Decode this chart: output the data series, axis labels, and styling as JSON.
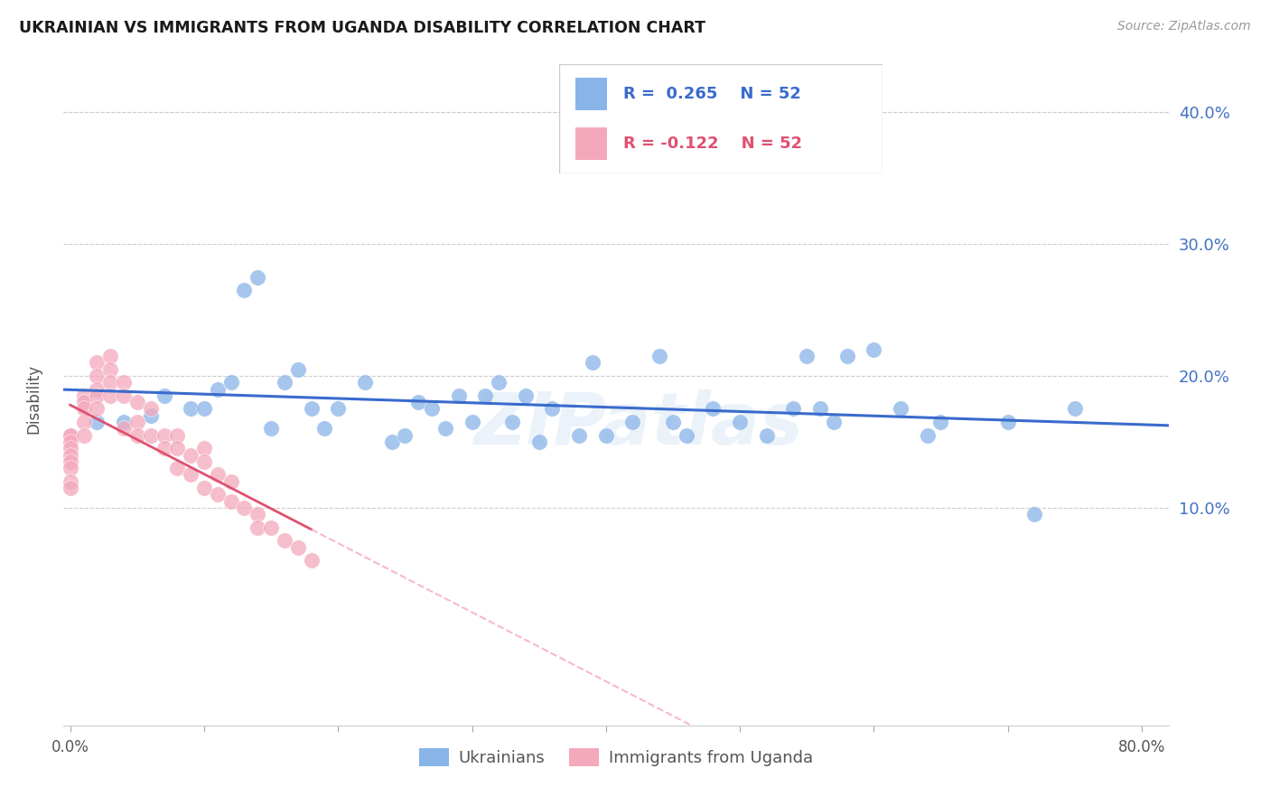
{
  "title": "UKRAINIAN VS IMMIGRANTS FROM UGANDA DISABILITY CORRELATION CHART",
  "source": "Source: ZipAtlas.com",
  "ylabel": "Disability",
  "watermark": "ZIPatlas",
  "legend_blue_r": "R =  0.265",
  "legend_blue_n": "N = 52",
  "legend_pink_r": "R = -0.122",
  "legend_pink_n": "N = 52",
  "legend_label_blue": "Ukrainians",
  "legend_label_pink": "Immigrants from Uganda",
  "blue_scatter_color": "#89b4e8",
  "pink_scatter_color": "#f4a8bc",
  "trendline_blue_color": "#3a6bcc",
  "trendline_pink_solid_color": "#e05070",
  "trendline_pink_dash_color": "#f4a8bc",
  "ytick_color": "#4472c4",
  "ytick_labels": [
    "10.0%",
    "20.0%",
    "30.0%",
    "40.0%"
  ],
  "ytick_values": [
    0.1,
    0.2,
    0.3,
    0.4
  ],
  "xlim": [
    -0.005,
    0.82
  ],
  "ylim": [
    -0.065,
    0.43
  ],
  "xtick_positions": [
    0.0,
    0.1,
    0.2,
    0.3,
    0.4,
    0.5,
    0.6,
    0.7,
    0.8
  ],
  "blue_x": [
    0.02,
    0.04,
    0.06,
    0.07,
    0.09,
    0.1,
    0.11,
    0.12,
    0.13,
    0.14,
    0.15,
    0.16,
    0.17,
    0.18,
    0.19,
    0.2,
    0.22,
    0.24,
    0.25,
    0.26,
    0.27,
    0.28,
    0.29,
    0.3,
    0.31,
    0.32,
    0.33,
    0.34,
    0.35,
    0.36,
    0.38,
    0.39,
    0.4,
    0.42,
    0.44,
    0.45,
    0.46,
    0.48,
    0.5,
    0.52,
    0.54,
    0.55,
    0.56,
    0.57,
    0.58,
    0.6,
    0.62,
    0.64,
    0.65,
    0.7,
    0.72,
    0.75
  ],
  "blue_y": [
    0.165,
    0.165,
    0.17,
    0.185,
    0.175,
    0.175,
    0.19,
    0.195,
    0.265,
    0.275,
    0.16,
    0.195,
    0.205,
    0.175,
    0.16,
    0.175,
    0.195,
    0.15,
    0.155,
    0.18,
    0.175,
    0.16,
    0.185,
    0.165,
    0.185,
    0.195,
    0.165,
    0.185,
    0.15,
    0.175,
    0.155,
    0.21,
    0.155,
    0.165,
    0.215,
    0.165,
    0.155,
    0.175,
    0.165,
    0.155,
    0.175,
    0.215,
    0.175,
    0.165,
    0.215,
    0.22,
    0.175,
    0.155,
    0.165,
    0.165,
    0.095,
    0.175
  ],
  "pink_x": [
    0.0,
    0.0,
    0.0,
    0.0,
    0.0,
    0.0,
    0.0,
    0.0,
    0.0,
    0.01,
    0.01,
    0.01,
    0.01,
    0.01,
    0.02,
    0.02,
    0.02,
    0.02,
    0.02,
    0.03,
    0.03,
    0.03,
    0.03,
    0.04,
    0.04,
    0.04,
    0.05,
    0.05,
    0.05,
    0.06,
    0.06,
    0.07,
    0.07,
    0.08,
    0.08,
    0.08,
    0.09,
    0.09,
    0.1,
    0.1,
    0.1,
    0.11,
    0.11,
    0.12,
    0.12,
    0.13,
    0.14,
    0.14,
    0.15,
    0.16,
    0.17,
    0.18
  ],
  "pink_y": [
    0.155,
    0.155,
    0.15,
    0.145,
    0.14,
    0.135,
    0.13,
    0.12,
    0.115,
    0.185,
    0.18,
    0.175,
    0.165,
    0.155,
    0.21,
    0.2,
    0.19,
    0.185,
    0.175,
    0.215,
    0.205,
    0.195,
    0.185,
    0.195,
    0.185,
    0.16,
    0.18,
    0.165,
    0.155,
    0.175,
    0.155,
    0.155,
    0.145,
    0.155,
    0.145,
    0.13,
    0.14,
    0.125,
    0.145,
    0.135,
    0.115,
    0.125,
    0.11,
    0.12,
    0.105,
    0.1,
    0.095,
    0.085,
    0.085,
    0.075,
    0.07,
    0.06
  ]
}
